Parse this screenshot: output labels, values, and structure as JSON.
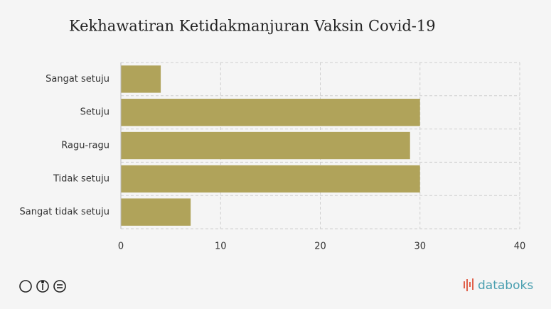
{
  "chart_data": {
    "type": "hbar",
    "title": "Kekhawatiran Ketidakmanjuran Vaksin Covid-19",
    "categories": [
      "Sangat setuju",
      "Setuju",
      "Ragu-ragu",
      "Tidak setuju",
      "Sangat tidak setuju"
    ],
    "values": [
      4,
      30,
      29,
      30,
      7
    ],
    "color": "#b0a35a",
    "xlim": [
      0,
      40
    ],
    "xticks": [
      0,
      10,
      20,
      30,
      40
    ],
    "grid": true
  },
  "footer": {
    "brand": "databoks"
  }
}
